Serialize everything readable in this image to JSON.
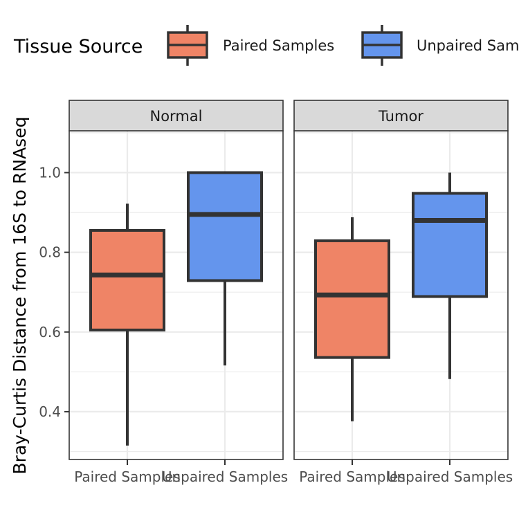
{
  "chart_data": {
    "type": "boxplot",
    "legend": {
      "title": "Tissue Source",
      "position": "top",
      "entries": [
        "Paired Samples",
        "Unpaired Samples"
      ]
    },
    "ylabel": "Bray-Curtis Distance from 16S to RNAseq",
    "ylim": [
      0.28,
      1.105
    ],
    "yticks": [
      0.4,
      0.6,
      0.8,
      1.0
    ],
    "ytick_labels": [
      "0.4",
      "0.6",
      "0.8",
      "1.0"
    ],
    "grid": true,
    "categories": [
      "Paired Samples",
      "Unpaired Samples"
    ],
    "colors": {
      "Paired Samples": "#EF8466",
      "Unpaired Samples": "#6495ED",
      "box_outline": "#333333",
      "strip_fill": "#d9d9d9",
      "grid": "#ebebeb"
    },
    "panels": [
      {
        "label": "Normal",
        "boxes": [
          {
            "category": "Paired Samples",
            "min": 0.315,
            "q1": 0.605,
            "median": 0.743,
            "q3": 0.855,
            "max": 0.922
          },
          {
            "category": "Unpaired Samples",
            "min": 0.516,
            "q1": 0.729,
            "median": 0.895,
            "q3": 1.0,
            "max": 1.0
          }
        ]
      },
      {
        "label": "Tumor",
        "boxes": [
          {
            "category": "Paired Samples",
            "min": 0.376,
            "q1": 0.536,
            "median": 0.693,
            "q3": 0.829,
            "max": 0.888
          },
          {
            "category": "Unpaired Samples",
            "min": 0.482,
            "q1": 0.689,
            "median": 0.88,
            "q3": 0.948,
            "max": 1.0
          }
        ]
      }
    ]
  }
}
